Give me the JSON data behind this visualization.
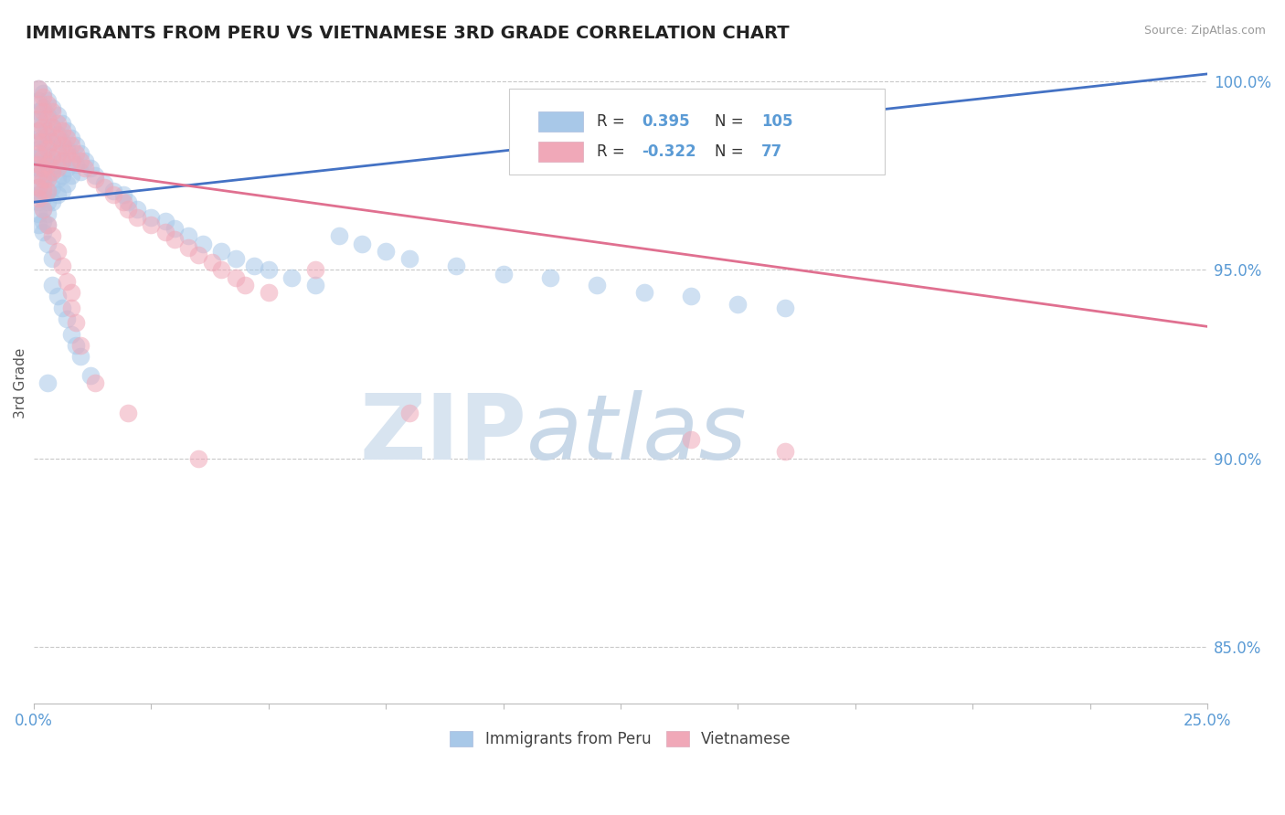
{
  "title": "IMMIGRANTS FROM PERU VS VIETNAMESE 3RD GRADE CORRELATION CHART",
  "source": "Source: ZipAtlas.com",
  "ylabel": "3rd Grade",
  "xlim": [
    0.0,
    0.25
  ],
  "ylim": [
    0.835,
    1.005
  ],
  "xticks": [
    0.0,
    0.025,
    0.05,
    0.075,
    0.1,
    0.125,
    0.15,
    0.175,
    0.2,
    0.225,
    0.25
  ],
  "xtick_labels": [
    "0.0%",
    "",
    "",
    "",
    "",
    "",
    "",
    "",
    "",
    "",
    "25.0%"
  ],
  "ytick_labels": [
    "85.0%",
    "90.0%",
    "95.0%",
    "100.0%"
  ],
  "yticks": [
    0.85,
    0.9,
    0.95,
    1.0
  ],
  "blue_color": "#A8C8E8",
  "pink_color": "#F0A8B8",
  "blue_line_color": "#4472C4",
  "pink_line_color": "#E07090",
  "blue_line": {
    "x0": 0.0,
    "y0": 0.968,
    "x1": 0.25,
    "y1": 1.002
  },
  "pink_line": {
    "x0": 0.0,
    "y0": 0.978,
    "x1": 0.25,
    "y1": 0.935
  },
  "scatter_blue": [
    [
      0.001,
      0.998
    ],
    [
      0.001,
      0.995
    ],
    [
      0.001,
      0.992
    ],
    [
      0.001,
      0.99
    ],
    [
      0.001,
      0.987
    ],
    [
      0.001,
      0.985
    ],
    [
      0.001,
      0.982
    ],
    [
      0.001,
      0.98
    ],
    [
      0.001,
      0.977
    ],
    [
      0.001,
      0.975
    ],
    [
      0.001,
      0.972
    ],
    [
      0.001,
      0.97
    ],
    [
      0.001,
      0.968
    ],
    [
      0.001,
      0.965
    ],
    [
      0.001,
      0.962
    ],
    [
      0.002,
      0.997
    ],
    [
      0.002,
      0.993
    ],
    [
      0.002,
      0.989
    ],
    [
      0.002,
      0.985
    ],
    [
      0.002,
      0.981
    ],
    [
      0.002,
      0.978
    ],
    [
      0.002,
      0.975
    ],
    [
      0.002,
      0.972
    ],
    [
      0.002,
      0.969
    ],
    [
      0.002,
      0.966
    ],
    [
      0.002,
      0.963
    ],
    [
      0.002,
      0.96
    ],
    [
      0.003,
      0.995
    ],
    [
      0.003,
      0.991
    ],
    [
      0.003,
      0.987
    ],
    [
      0.003,
      0.983
    ],
    [
      0.003,
      0.979
    ],
    [
      0.003,
      0.975
    ],
    [
      0.003,
      0.971
    ],
    [
      0.003,
      0.968
    ],
    [
      0.003,
      0.965
    ],
    [
      0.003,
      0.962
    ],
    [
      0.004,
      0.993
    ],
    [
      0.004,
      0.988
    ],
    [
      0.004,
      0.984
    ],
    [
      0.004,
      0.98
    ],
    [
      0.004,
      0.976
    ],
    [
      0.004,
      0.972
    ],
    [
      0.004,
      0.968
    ],
    [
      0.005,
      0.991
    ],
    [
      0.005,
      0.986
    ],
    [
      0.005,
      0.982
    ],
    [
      0.005,
      0.978
    ],
    [
      0.005,
      0.974
    ],
    [
      0.005,
      0.97
    ],
    [
      0.006,
      0.989
    ],
    [
      0.006,
      0.984
    ],
    [
      0.006,
      0.979
    ],
    [
      0.006,
      0.975
    ],
    [
      0.006,
      0.971
    ],
    [
      0.007,
      0.987
    ],
    [
      0.007,
      0.982
    ],
    [
      0.007,
      0.977
    ],
    [
      0.007,
      0.973
    ],
    [
      0.008,
      0.985
    ],
    [
      0.008,
      0.98
    ],
    [
      0.008,
      0.975
    ],
    [
      0.009,
      0.983
    ],
    [
      0.009,
      0.978
    ],
    [
      0.01,
      0.981
    ],
    [
      0.01,
      0.976
    ],
    [
      0.011,
      0.979
    ],
    [
      0.012,
      0.977
    ],
    [
      0.013,
      0.975
    ],
    [
      0.015,
      0.973
    ],
    [
      0.017,
      0.971
    ],
    [
      0.019,
      0.97
    ],
    [
      0.02,
      0.968
    ],
    [
      0.022,
      0.966
    ],
    [
      0.025,
      0.964
    ],
    [
      0.028,
      0.963
    ],
    [
      0.03,
      0.961
    ],
    [
      0.033,
      0.959
    ],
    [
      0.036,
      0.957
    ],
    [
      0.04,
      0.955
    ],
    [
      0.043,
      0.953
    ],
    [
      0.047,
      0.951
    ],
    [
      0.05,
      0.95
    ],
    [
      0.055,
      0.948
    ],
    [
      0.06,
      0.946
    ],
    [
      0.065,
      0.959
    ],
    [
      0.07,
      0.957
    ],
    [
      0.075,
      0.955
    ],
    [
      0.08,
      0.953
    ],
    [
      0.09,
      0.951
    ],
    [
      0.1,
      0.949
    ],
    [
      0.11,
      0.948
    ],
    [
      0.12,
      0.946
    ],
    [
      0.13,
      0.944
    ],
    [
      0.14,
      0.943
    ],
    [
      0.15,
      0.941
    ],
    [
      0.16,
      0.94
    ],
    [
      0.003,
      0.957
    ],
    [
      0.004,
      0.953
    ],
    [
      0.004,
      0.946
    ],
    [
      0.005,
      0.943
    ],
    [
      0.006,
      0.94
    ],
    [
      0.007,
      0.937
    ],
    [
      0.008,
      0.933
    ],
    [
      0.009,
      0.93
    ],
    [
      0.01,
      0.927
    ],
    [
      0.012,
      0.922
    ],
    [
      0.003,
      0.92
    ]
  ],
  "scatter_pink": [
    [
      0.001,
      0.998
    ],
    [
      0.001,
      0.994
    ],
    [
      0.001,
      0.99
    ],
    [
      0.001,
      0.987
    ],
    [
      0.001,
      0.984
    ],
    [
      0.001,
      0.981
    ],
    [
      0.001,
      0.978
    ],
    [
      0.001,
      0.975
    ],
    [
      0.001,
      0.972
    ],
    [
      0.001,
      0.969
    ],
    [
      0.002,
      0.996
    ],
    [
      0.002,
      0.992
    ],
    [
      0.002,
      0.988
    ],
    [
      0.002,
      0.984
    ],
    [
      0.002,
      0.98
    ],
    [
      0.002,
      0.977
    ],
    [
      0.002,
      0.974
    ],
    [
      0.002,
      0.971
    ],
    [
      0.003,
      0.994
    ],
    [
      0.003,
      0.99
    ],
    [
      0.003,
      0.986
    ],
    [
      0.003,
      0.982
    ],
    [
      0.003,
      0.978
    ],
    [
      0.003,
      0.974
    ],
    [
      0.003,
      0.971
    ],
    [
      0.004,
      0.992
    ],
    [
      0.004,
      0.988
    ],
    [
      0.004,
      0.984
    ],
    [
      0.004,
      0.98
    ],
    [
      0.004,
      0.976
    ],
    [
      0.005,
      0.989
    ],
    [
      0.005,
      0.985
    ],
    [
      0.005,
      0.981
    ],
    [
      0.005,
      0.977
    ],
    [
      0.006,
      0.987
    ],
    [
      0.006,
      0.983
    ],
    [
      0.006,
      0.979
    ],
    [
      0.007,
      0.985
    ],
    [
      0.007,
      0.981
    ],
    [
      0.008,
      0.983
    ],
    [
      0.008,
      0.979
    ],
    [
      0.009,
      0.981
    ],
    [
      0.01,
      0.979
    ],
    [
      0.011,
      0.977
    ],
    [
      0.013,
      0.974
    ],
    [
      0.015,
      0.972
    ],
    [
      0.017,
      0.97
    ],
    [
      0.019,
      0.968
    ],
    [
      0.02,
      0.966
    ],
    [
      0.022,
      0.964
    ],
    [
      0.025,
      0.962
    ],
    [
      0.028,
      0.96
    ],
    [
      0.03,
      0.958
    ],
    [
      0.033,
      0.956
    ],
    [
      0.035,
      0.954
    ],
    [
      0.038,
      0.952
    ],
    [
      0.04,
      0.95
    ],
    [
      0.043,
      0.948
    ],
    [
      0.045,
      0.946
    ],
    [
      0.05,
      0.944
    ],
    [
      0.002,
      0.966
    ],
    [
      0.003,
      0.962
    ],
    [
      0.004,
      0.959
    ],
    [
      0.005,
      0.955
    ],
    [
      0.006,
      0.951
    ],
    [
      0.007,
      0.947
    ],
    [
      0.008,
      0.944
    ],
    [
      0.008,
      0.94
    ],
    [
      0.009,
      0.936
    ],
    [
      0.01,
      0.93
    ],
    [
      0.013,
      0.92
    ],
    [
      0.02,
      0.912
    ],
    [
      0.035,
      0.9
    ],
    [
      0.06,
      0.95
    ],
    [
      0.08,
      0.912
    ],
    [
      0.14,
      0.905
    ],
    [
      0.16,
      0.902
    ]
  ]
}
